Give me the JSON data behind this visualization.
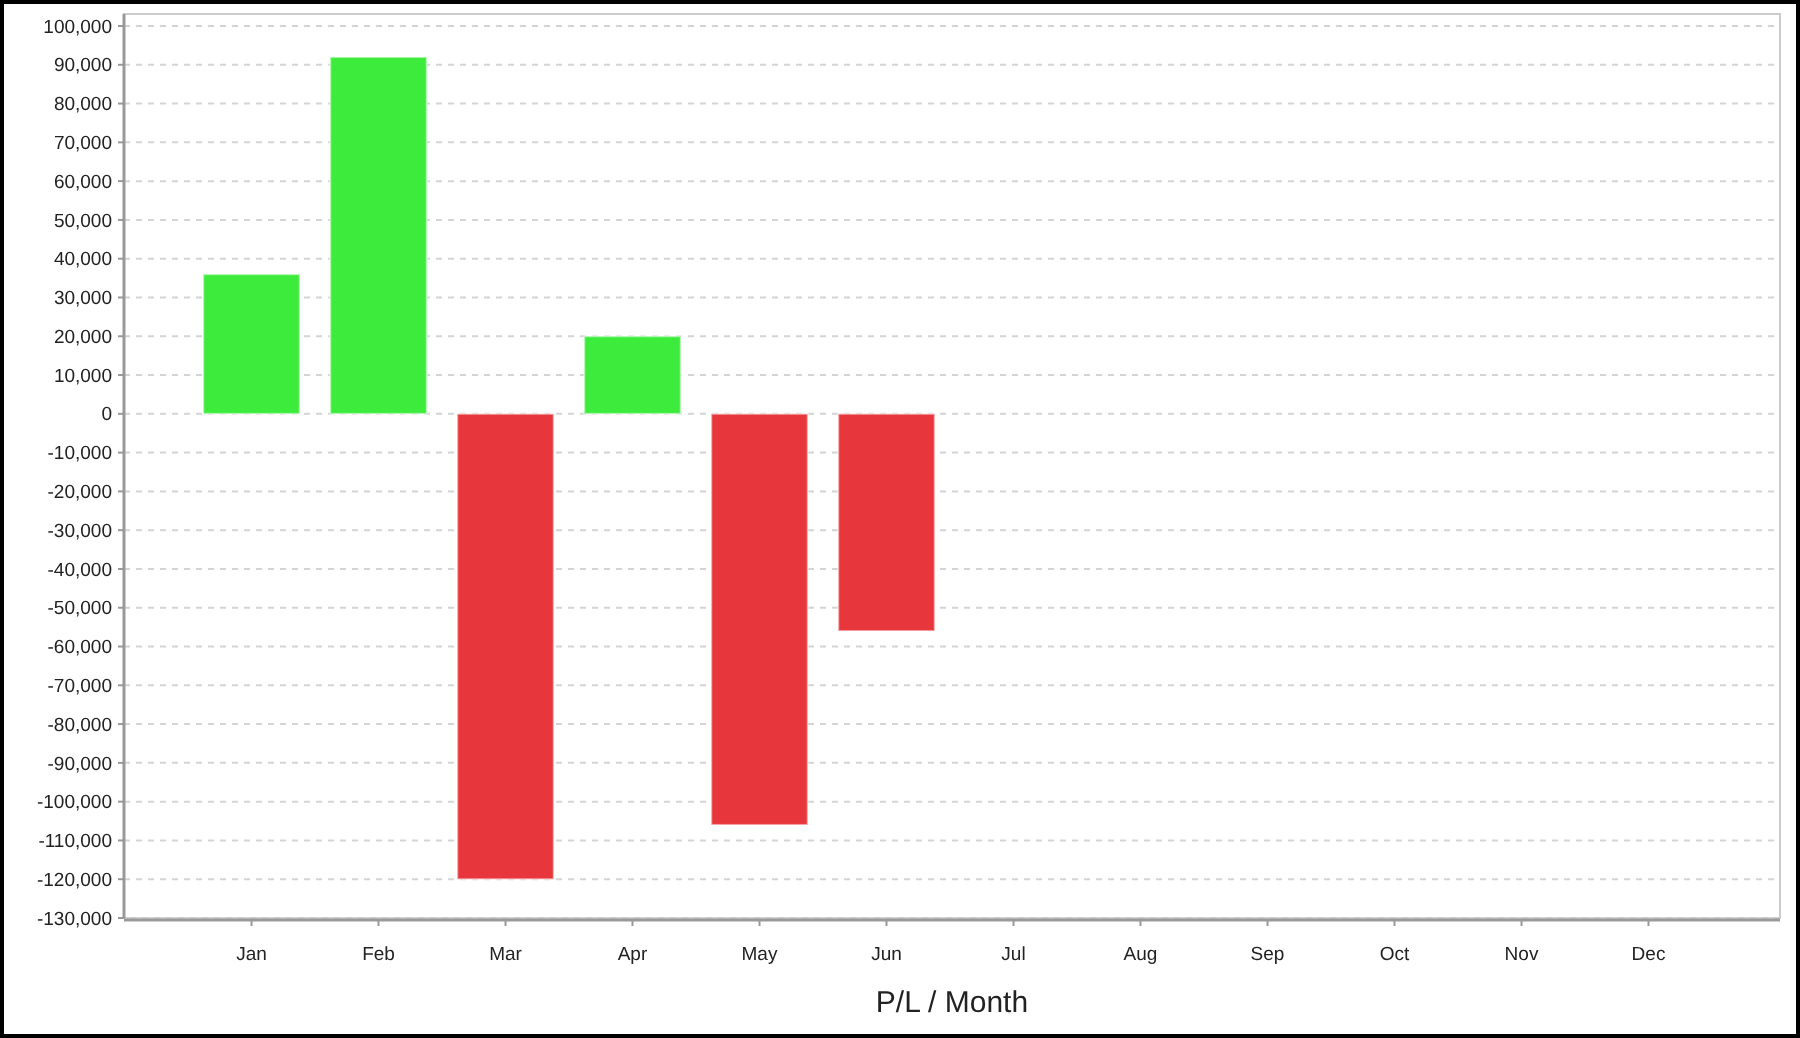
{
  "chart_data": {
    "type": "bar",
    "xlabel": "P/L / Month",
    "categories": [
      "Jan",
      "Feb",
      "Mar",
      "Apr",
      "May",
      "Jun",
      "Jul",
      "Aug",
      "Sep",
      "Oct",
      "Nov",
      "Dec"
    ],
    "values": [
      36000,
      92000,
      -120000,
      20000,
      -106000,
      -56000,
      null,
      null,
      null,
      null,
      null,
      null
    ],
    "colors": [
      "#3deb3d",
      "#3deb3d",
      "#e8373c",
      "#3deb3d",
      "#e8373c",
      "#e8373c",
      null,
      null,
      null,
      null,
      null,
      null
    ],
    "ylim": [
      -130000,
      100000
    ],
    "yticks": [
      {
        "value": -130000,
        "label": "-130,000"
      },
      {
        "value": -120000,
        "label": "-120,000"
      },
      {
        "value": -110000,
        "label": "-110,000"
      },
      {
        "value": -100000,
        "label": "-100,000"
      },
      {
        "value": -90000,
        "label": "-90,000"
      },
      {
        "value": -80000,
        "label": "-80,000"
      },
      {
        "value": -70000,
        "label": "-70,000"
      },
      {
        "value": -60000,
        "label": "-60,000"
      },
      {
        "value": -50000,
        "label": "-50,000"
      },
      {
        "value": -40000,
        "label": "-40,000"
      },
      {
        "value": -30000,
        "label": "-30,000"
      },
      {
        "value": -20000,
        "label": "-20,000"
      },
      {
        "value": -10000,
        "label": "-10,000"
      },
      0,
      {
        "value": 10000,
        "label": "10,000"
      },
      {
        "value": 20000,
        "label": "20,000"
      },
      {
        "value": 30000,
        "label": "30,000"
      },
      {
        "value": 40000,
        "label": "40,000"
      },
      {
        "value": 50000,
        "label": "50,000"
      },
      {
        "value": 60000,
        "label": "60,000"
      },
      {
        "value": 70000,
        "label": "70,000"
      },
      {
        "value": 80000,
        "label": "80,000"
      },
      {
        "value": 90000,
        "label": "90,000"
      },
      {
        "value": 100000,
        "label": "100,000"
      }
    ],
    "grid": "y"
  }
}
